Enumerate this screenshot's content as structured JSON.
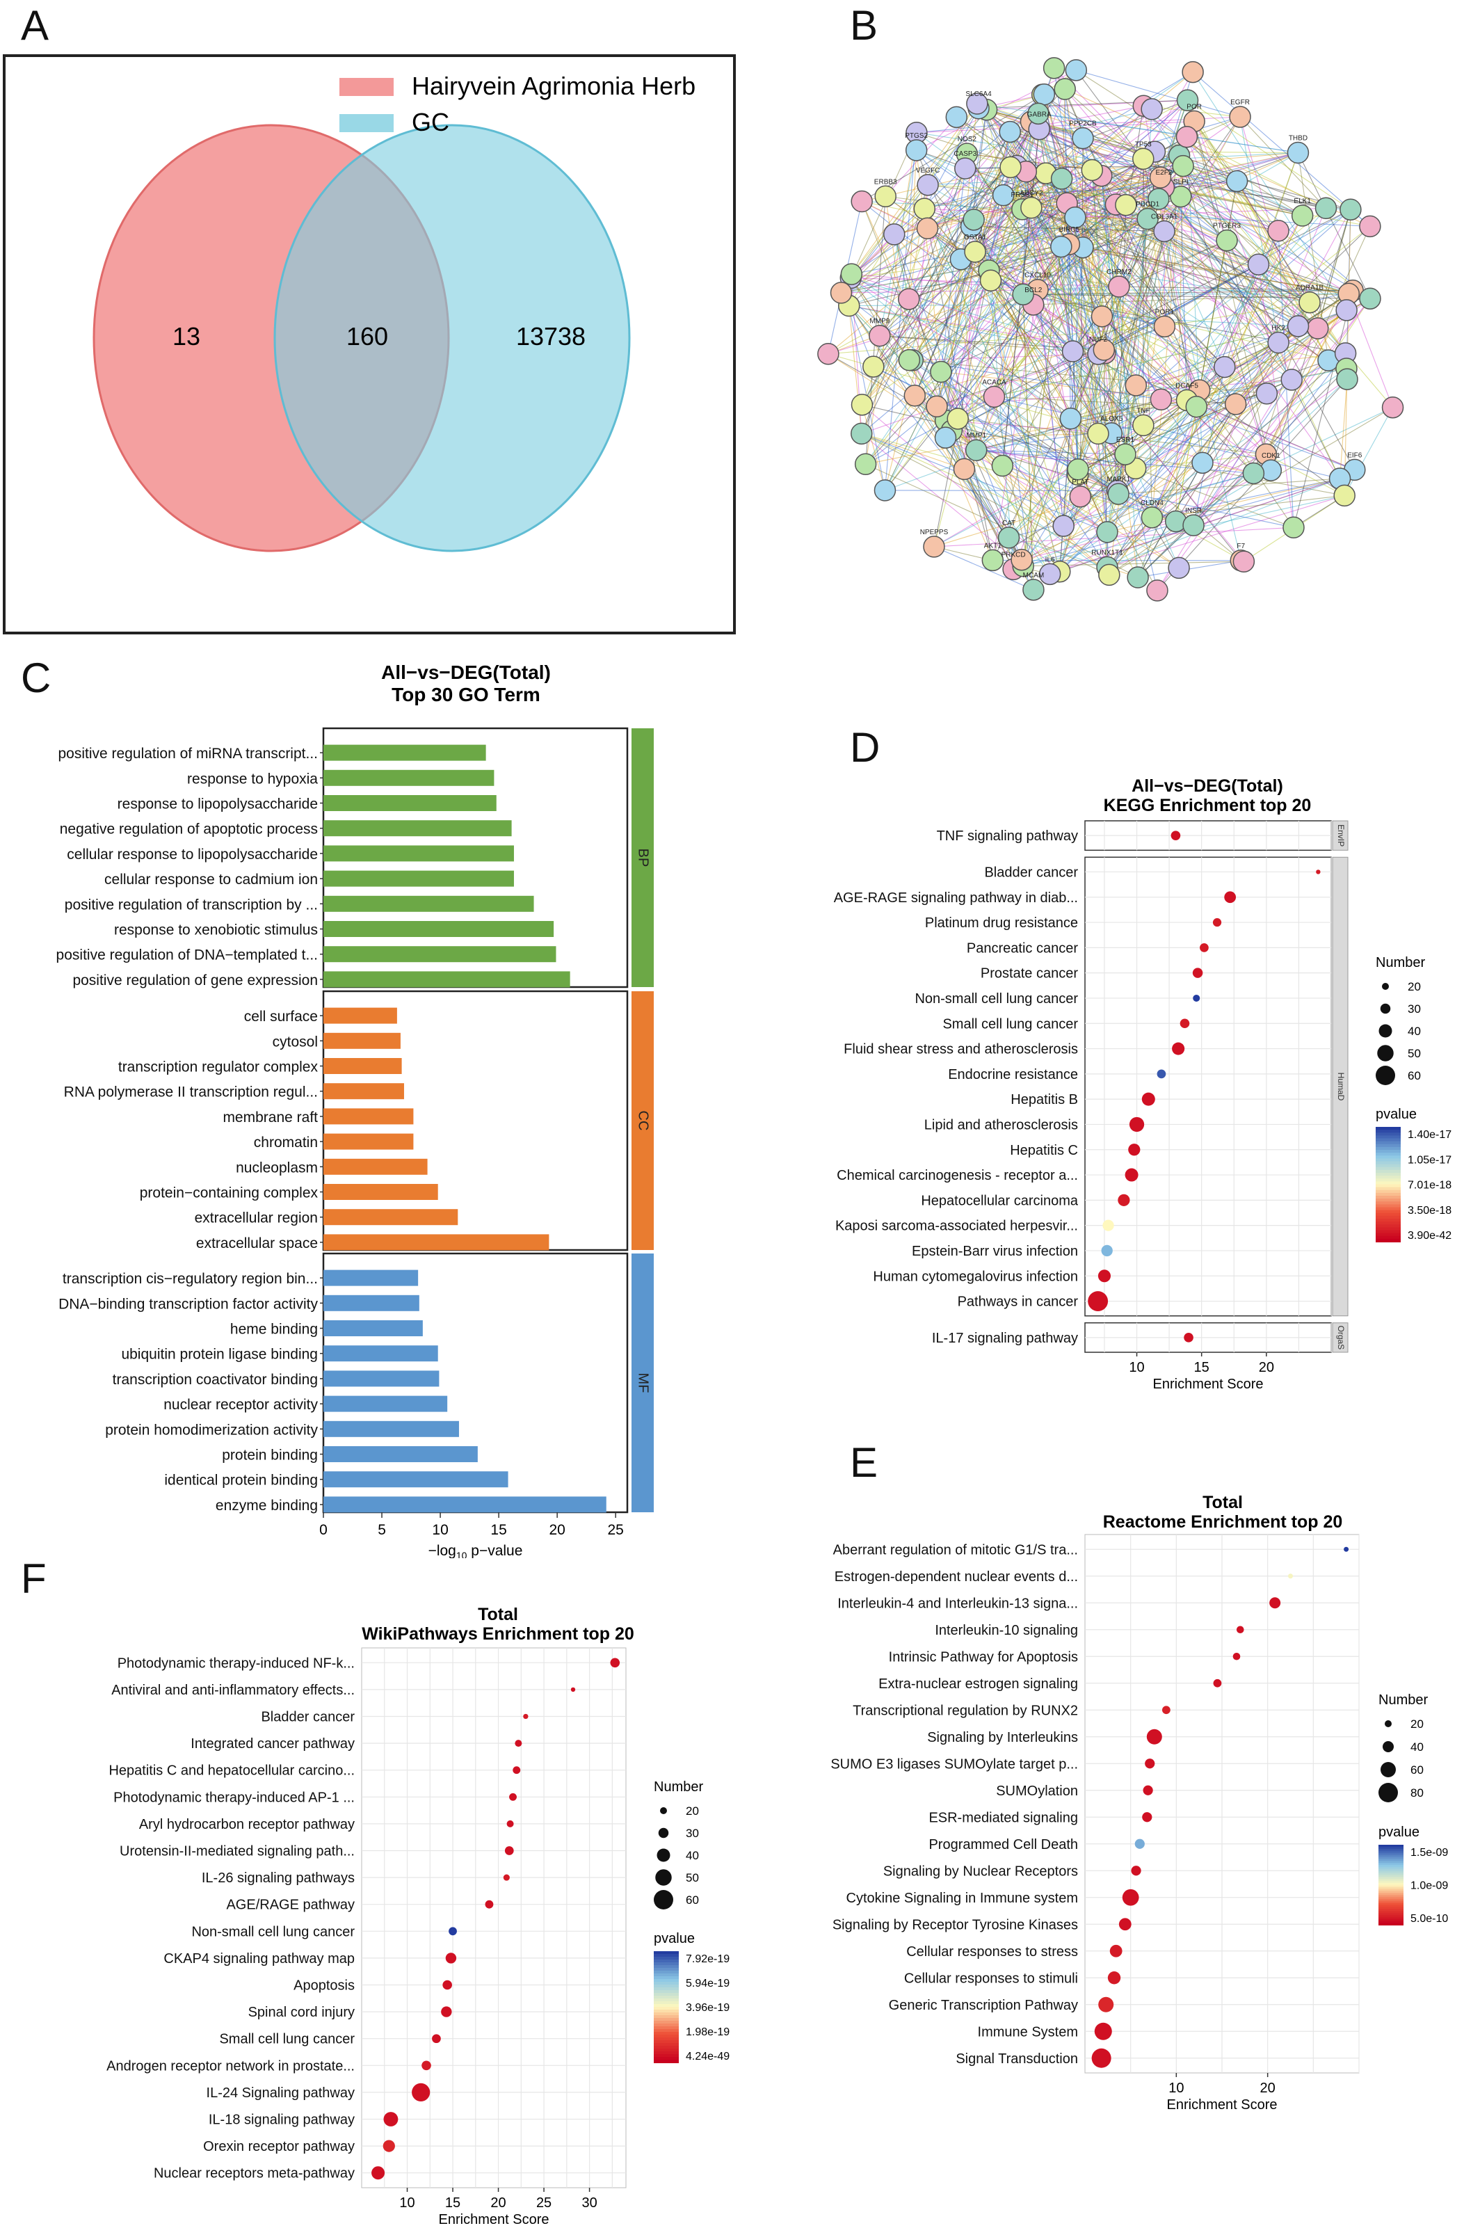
{
  "panel_letters": [
    "A",
    "B",
    "C",
    "D",
    "E",
    "F"
  ],
  "chart_data": [
    {
      "panel": "A",
      "type": "venn",
      "sets": [
        {
          "name": "Hairyvein Agrimonia Herb",
          "color": "#F08080"
        },
        {
          "name": "GC",
          "color": "#7FCEE0"
        }
      ],
      "only_left": "13",
      "intersection": "160",
      "only_right": "13738"
    },
    {
      "panel": "B",
      "type": "network",
      "node_labels": [
        "PRSS1",
        "F7",
        "PDCD1",
        "THBD",
        "PLAT",
        "COL3A1",
        "ADRA1B",
        "SLPI",
        "CXCL10",
        "MMP1",
        "ALOX5",
        "ACACA",
        "VEGFC",
        "ADCY2",
        "ELK1",
        "POR",
        "INSR",
        "EIF6",
        "PRKCD",
        "HK2",
        "ERBB3",
        "NOS2",
        "BIRC5",
        "CAT",
        "CDK1",
        "E2F2",
        "NUF2",
        "DCAF5",
        "CLDN4",
        "NPEPPS",
        "RUNX1T1",
        "PPP2CB",
        "CHRM2",
        "GABRA",
        "GSTA1",
        "PTGER3",
        "POR1",
        "MCAM",
        "SLC6A4",
        "BCL2",
        "IL6",
        "TNF",
        "AKT1",
        "EGFR",
        "MAPK1",
        "PTGS2",
        "MMP9",
        "CASP3",
        "TP53",
        "ESR1"
      ]
    },
    {
      "panel": "C",
      "type": "bar",
      "title": "All−vs−DEG(Total)",
      "subtitle": "Top 30 GO Term",
      "xlabel_prefix": "−log",
      "xlabel_sub": "10",
      "xlabel_suffix": " p−value",
      "xlim": [
        0,
        26
      ],
      "xticks": [
        0,
        5,
        10,
        15,
        20,
        25
      ],
      "groups": [
        {
          "name": "BP",
          "color": "#6CA846",
          "terms": [
            {
              "label": "positive regulation of miRNA transcript...",
              "value": 13.9
            },
            {
              "label": "response to hypoxia",
              "value": 14.6
            },
            {
              "label": "response to lipopolysaccharide",
              "value": 14.8
            },
            {
              "label": "negative regulation of apoptotic process",
              "value": 16.1
            },
            {
              "label": "cellular response to lipopolysaccharide",
              "value": 16.3
            },
            {
              "label": "cellular response to cadmium ion",
              "value": 16.3
            },
            {
              "label": "positive regulation of transcription by ...",
              "value": 18.0
            },
            {
              "label": "response to xenobiotic stimulus",
              "value": 19.7
            },
            {
              "label": "positive regulation of DNA−templated t...",
              "value": 19.9
            },
            {
              "label": "positive regulation of gene expression",
              "value": 21.1
            }
          ]
        },
        {
          "name": "CC",
          "color": "#E97C30",
          "terms": [
            {
              "label": "cell surface",
              "value": 6.3
            },
            {
              "label": "cytosol",
              "value": 6.6
            },
            {
              "label": "transcription regulator complex",
              "value": 6.7
            },
            {
              "label": "RNA polymerase II transcription regul...",
              "value": 6.9
            },
            {
              "label": "membrane raft",
              "value": 7.7
            },
            {
              "label": "chromatin",
              "value": 7.7
            },
            {
              "label": "nucleoplasm",
              "value": 8.9
            },
            {
              "label": "protein−containing complex",
              "value": 9.8
            },
            {
              "label": "extracellular region",
              "value": 11.5
            },
            {
              "label": "extracellular space",
              "value": 19.3
            }
          ]
        },
        {
          "name": "MF",
          "color": "#5B96CF",
          "terms": [
            {
              "label": "transcription cis−regulatory region bin...",
              "value": 8.1
            },
            {
              "label": "DNA−binding transcription factor activity",
              "value": 8.2
            },
            {
              "label": "heme binding",
              "value": 8.5
            },
            {
              "label": "ubiquitin protein ligase binding",
              "value": 9.8
            },
            {
              "label": "transcription coactivator binding",
              "value": 9.9
            },
            {
              "label": "nuclear receptor activity",
              "value": 10.6
            },
            {
              "label": "protein homodimerization activity",
              "value": 11.6
            },
            {
              "label": "protein binding",
              "value": 13.2
            },
            {
              "label": "identical protein binding",
              "value": 15.8
            },
            {
              "label": "enzyme binding",
              "value": 24.2
            }
          ]
        }
      ]
    },
    {
      "panel": "D",
      "type": "scatter",
      "title": "All−vs−DEG(Total)",
      "subtitle": "KEGG Enrichment top 20",
      "xlabel": "Enrichment Score",
      "xlim": [
        6,
        25
      ],
      "xticks": [
        10,
        15,
        20
      ],
      "size_legend_title": "Number",
      "size_legend": [
        20,
        30,
        40,
        50,
        60
      ],
      "color_legend_title": "pvalue",
      "color_legend_labels": [
        "1.40e-17",
        "1.05e-17",
        "7.01e-18",
        "3.50e-18",
        "3.90e-42"
      ],
      "facets": [
        {
          "name": "EnvIP",
          "terms": [
            {
              "label": "TNF signaling pathway",
              "x": 13.0,
              "number": 28,
              "color": 0.05
            }
          ]
        },
        {
          "name": "HumaD",
          "terms": [
            {
              "label": "Bladder cancer",
              "x": 24.0,
              "number": 12,
              "color": 0.08
            },
            {
              "label": "AGE-RAGE signaling pathway in diab...",
              "x": 17.2,
              "number": 35,
              "color": 0.05
            },
            {
              "label": "Platinum drug resistance",
              "x": 16.2,
              "number": 25,
              "color": 0.08
            },
            {
              "label": "Pancreatic cancer",
              "x": 15.2,
              "number": 26,
              "color": 0.08
            },
            {
              "label": "Prostate cancer",
              "x": 14.7,
              "number": 30,
              "color": 0.06
            },
            {
              "label": "Non-small cell lung cancer",
              "x": 14.6,
              "number": 20,
              "color": 1.0
            },
            {
              "label": "Small cell lung cancer",
              "x": 13.7,
              "number": 28,
              "color": 0.08
            },
            {
              "label": "Fluid shear stress and atherosclerosis",
              "x": 13.2,
              "number": 38,
              "color": 0.05
            },
            {
              "label": "Endocrine resistance",
              "x": 11.9,
              "number": 26,
              "color": 0.95
            },
            {
              "label": "Hepatitis B",
              "x": 10.9,
              "number": 40,
              "color": 0.05
            },
            {
              "label": "Lipid and atherosclerosis",
              "x": 10.0,
              "number": 45,
              "color": 0.05
            },
            {
              "label": "Hepatitis C",
              "x": 9.8,
              "number": 36,
              "color": 0.05
            },
            {
              "label": "Chemical carcinogenesis - receptor a...",
              "x": 9.6,
              "number": 40,
              "color": 0.05
            },
            {
              "label": "Hepatocellular carcinoma",
              "x": 9.0,
              "number": 36,
              "color": 0.08
            },
            {
              "label": "Kaposi sarcoma-associated herpesvir...",
              "x": 7.8,
              "number": 34,
              "color": 0.5
            },
            {
              "label": "Epstein-Barr virus infection",
              "x": 7.7,
              "number": 34,
              "color": 0.78
            },
            {
              "label": "Human cytomegalovirus infection",
              "x": 7.5,
              "number": 38,
              "color": 0.05
            },
            {
              "label": "Pathways in cancer",
              "x": 7.0,
              "number": 62,
              "color": 0.05
            }
          ]
        },
        {
          "name": "OrgaS",
          "terms": [
            {
              "label": "IL-17 signaling pathway",
              "x": 14.0,
              "number": 28,
              "color": 0.05
            }
          ]
        }
      ]
    },
    {
      "panel": "E",
      "type": "scatter",
      "title": "Total",
      "subtitle": "Reactome Enrichment top 20",
      "xlabel": "Enrichment Score",
      "xlim": [
        0,
        30
      ],
      "xticks": [
        10,
        20
      ],
      "size_legend_title": "Number",
      "size_legend": [
        20,
        40,
        60,
        80
      ],
      "color_legend_title": "pvalue",
      "color_legend_labels": [
        "1.5e-09",
        "1.0e-09",
        "5.0e-10"
      ],
      "terms": [
        {
          "label": "Aberrant regulation of mitotic G1/S tra...",
          "x": 28.6,
          "number": 10,
          "color": 1.0
        },
        {
          "label": "Estrogen-dependent nuclear events d...",
          "x": 22.5,
          "number": 10,
          "color": 0.52
        },
        {
          "label": "Interleukin-4 and Interleukin-13 signa...",
          "x": 20.8,
          "number": 40,
          "color": 0.05
        },
        {
          "label": "Interleukin-10 signaling",
          "x": 17.0,
          "number": 22,
          "color": 0.05
        },
        {
          "label": "Intrinsic Pathway for Apoptosis",
          "x": 16.6,
          "number": 22,
          "color": 0.05
        },
        {
          "label": "Extra-nuclear estrogen signaling",
          "x": 14.5,
          "number": 26,
          "color": 0.05
        },
        {
          "label": "Transcriptional regulation by RUNX2",
          "x": 8.9,
          "number": 26,
          "color": 0.1
        },
        {
          "label": "Signaling by Interleukins",
          "x": 7.6,
          "number": 60,
          "color": 0.05
        },
        {
          "label": "SUMO E3 ligases SUMOylate target p...",
          "x": 7.1,
          "number": 34,
          "color": 0.05
        },
        {
          "label": "SUMOylation",
          "x": 6.9,
          "number": 34,
          "color": 0.05
        },
        {
          "label": "ESR-mediated signaling",
          "x": 6.8,
          "number": 34,
          "color": 0.05
        },
        {
          "label": "Programmed Cell Death",
          "x": 6.0,
          "number": 34,
          "color": 0.8
        },
        {
          "label": "Signaling by Nuclear Receptors",
          "x": 5.6,
          "number": 34,
          "color": 0.05
        },
        {
          "label": "Cytokine Signaling in Immune system",
          "x": 5.0,
          "number": 66,
          "color": 0.05
        },
        {
          "label": "Signaling by Receptor Tyrosine Kinases",
          "x": 4.4,
          "number": 46,
          "color": 0.05
        },
        {
          "label": "Cellular responses to stress",
          "x": 3.4,
          "number": 46,
          "color": 0.08
        },
        {
          "label": "Cellular responses to stimuli",
          "x": 3.2,
          "number": 48,
          "color": 0.08
        },
        {
          "label": "Generic Transcription Pathway",
          "x": 2.3,
          "number": 60,
          "color": 0.12
        },
        {
          "label": "Immune System",
          "x": 2.0,
          "number": 70,
          "color": 0.05
        },
        {
          "label": "Signal Transduction",
          "x": 1.8,
          "number": 80,
          "color": 0.05
        }
      ]
    },
    {
      "panel": "F",
      "type": "scatter",
      "title": "Total",
      "subtitle": "WikiPathways Enrichment top 20",
      "xlabel": "Enrichment Score",
      "xlim": [
        5,
        34
      ],
      "xticks": [
        10,
        15,
        20,
        25,
        30
      ],
      "size_legend_title": "Number",
      "size_legend": [
        20,
        30,
        40,
        50,
        60
      ],
      "color_legend_title": "pvalue",
      "color_legend_labels": [
        "7.92e-19",
        "5.94e-19",
        "3.96e-19",
        "1.98e-19",
        "4.24e-49"
      ],
      "terms": [
        {
          "label": "Photodynamic therapy-induced NF-k...",
          "x": 32.8,
          "number": 28,
          "color": 0.05
        },
        {
          "label": "Antiviral and anti-inflammatory effects...",
          "x": 28.2,
          "number": 12,
          "color": 0.05
        },
        {
          "label": "Bladder cancer",
          "x": 23.0,
          "number": 14,
          "color": 0.08
        },
        {
          "label": "Integrated cancer pathway",
          "x": 22.2,
          "number": 20,
          "color": 0.05
        },
        {
          "label": "Hepatitis C and hepatocellular carcino...",
          "x": 22.0,
          "number": 22,
          "color": 0.05
        },
        {
          "label": "Photodynamic therapy-induced AP-1 ...",
          "x": 21.6,
          "number": 22,
          "color": 0.05
        },
        {
          "label": "Aryl hydrocarbon receptor pathway",
          "x": 21.3,
          "number": 20,
          "color": 0.05
        },
        {
          "label": "Urotensin-II-mediated signaling path...",
          "x": 21.2,
          "number": 26,
          "color": 0.05
        },
        {
          "label": "IL-26 signaling pathways",
          "x": 20.9,
          "number": 18,
          "color": 0.08
        },
        {
          "label": "AGE/RAGE pathway",
          "x": 19.0,
          "number": 24,
          "color": 0.05
        },
        {
          "label": "Non-small cell lung cancer",
          "x": 15.0,
          "number": 24,
          "color": 1.0
        },
        {
          "label": "CKAP4 signaling pathway map",
          "x": 14.8,
          "number": 32,
          "color": 0.05
        },
        {
          "label": "Apoptosis",
          "x": 14.4,
          "number": 28,
          "color": 0.05
        },
        {
          "label": "Spinal cord injury",
          "x": 14.3,
          "number": 32,
          "color": 0.05
        },
        {
          "label": "Small cell lung cancer",
          "x": 13.2,
          "number": 26,
          "color": 0.05
        },
        {
          "label": "Androgen receptor network in prostate...",
          "x": 12.1,
          "number": 28,
          "color": 0.08
        },
        {
          "label": "IL-24 Signaling pathway",
          "x": 11.5,
          "number": 56,
          "color": 0.05
        },
        {
          "label": "IL-18 signaling pathway",
          "x": 8.2,
          "number": 44,
          "color": 0.05
        },
        {
          "label": "Orexin receptor pathway",
          "x": 8.0,
          "number": 36,
          "color": 0.12
        },
        {
          "label": "Nuclear receptors meta-pathway",
          "x": 6.8,
          "number": 40,
          "color": 0.05
        }
      ]
    }
  ]
}
